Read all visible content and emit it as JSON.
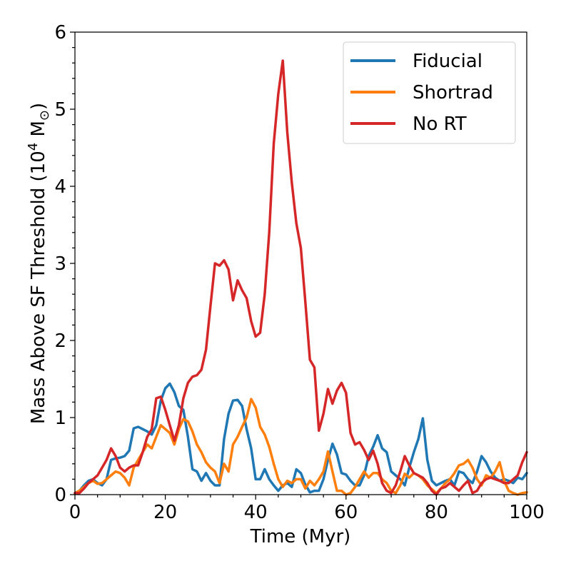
{
  "chart_data": {
    "type": "line",
    "title": "",
    "xlabel": "Time (Myr)",
    "ylabel_main": "Mass Above SF Threshold (10",
    "ylabel_exp": "4",
    "ylabel_unit": " M",
    "ylabel_sub": "⊙",
    "ylabel_close": ")",
    "xlim": [
      0,
      100
    ],
    "ylim": [
      0,
      6
    ],
    "xticks": [
      0,
      20,
      40,
      60,
      80,
      100
    ],
    "xtick_labels": [
      "0",
      "20",
      "40",
      "60",
      "80",
      "100"
    ],
    "yticks": [
      0,
      1,
      2,
      3,
      4,
      5,
      6
    ],
    "ytick_labels": [
      "0",
      "1",
      "2",
      "3",
      "4",
      "5",
      "6"
    ],
    "legend_position": "top-right",
    "series": [
      {
        "name": "Fiducial",
        "color": "#1f77b4",
        "x": [
          0,
          1,
          2,
          3,
          4,
          5,
          6,
          7,
          8,
          9,
          10,
          11,
          12,
          13,
          14,
          15,
          16,
          17,
          18,
          19,
          20,
          21,
          22,
          23,
          24,
          25,
          26,
          27,
          28,
          29,
          30,
          31,
          32,
          33,
          34,
          35,
          36,
          37,
          38,
          39,
          40,
          41,
          42,
          43,
          44,
          45,
          46,
          47,
          48,
          49,
          50,
          51,
          52,
          53,
          54,
          55,
          56,
          57,
          58,
          59,
          60,
          61,
          62,
          63,
          64,
          65,
          66,
          67,
          68,
          69,
          70,
          71,
          72,
          73,
          74,
          75,
          76,
          77,
          78,
          79,
          80,
          81,
          82,
          83,
          84,
          85,
          86,
          87,
          88,
          89,
          90,
          91,
          92,
          93,
          94,
          95,
          96,
          97,
          98,
          99,
          100
        ],
        "values": [
          0.02,
          0.05,
          0.12,
          0.18,
          0.2,
          0.15,
          0.12,
          0.2,
          0.45,
          0.47,
          0.48,
          0.5,
          0.57,
          0.86,
          0.88,
          0.85,
          0.82,
          0.78,
          0.9,
          1.22,
          1.38,
          1.44,
          1.33,
          1.15,
          1.1,
          0.75,
          0.33,
          0.3,
          0.18,
          0.28,
          0.18,
          0.12,
          0.12,
          0.72,
          1.05,
          1.22,
          1.23,
          1.15,
          0.85,
          0.6,
          0.2,
          0.2,
          0.33,
          0.2,
          0.12,
          0.05,
          0.12,
          0.15,
          0.1,
          0.33,
          0.28,
          0.13,
          0.03,
          0.05,
          0.05,
          0.2,
          0.45,
          0.66,
          0.52,
          0.28,
          0.26,
          0.18,
          0.12,
          0.12,
          0.25,
          0.5,
          0.62,
          0.77,
          0.6,
          0.55,
          0.3,
          0.25,
          0.2,
          0.12,
          0.35,
          0.55,
          0.72,
          0.99,
          0.45,
          0.18,
          0.12,
          0.15,
          0.18,
          0.2,
          0.12,
          0.3,
          0.28,
          0.2,
          0.15,
          0.3,
          0.5,
          0.42,
          0.3,
          0.22,
          0.18,
          0.2,
          0.18,
          0.15,
          0.22,
          0.2,
          0.28
        ]
      },
      {
        "name": "Shortrad",
        "color": "#ff7f0e",
        "x": [
          0,
          1,
          2,
          3,
          4,
          5,
          6,
          7,
          8,
          9,
          10,
          11,
          12,
          13,
          14,
          15,
          16,
          17,
          18,
          19,
          20,
          21,
          22,
          23,
          24,
          25,
          26,
          27,
          28,
          29,
          30,
          31,
          32,
          33,
          34,
          35,
          36,
          37,
          38,
          39,
          40,
          41,
          42,
          43,
          44,
          45,
          46,
          47,
          48,
          49,
          50,
          51,
          52,
          53,
          54,
          55,
          56,
          57,
          58,
          59,
          60,
          61,
          62,
          63,
          64,
          65,
          66,
          67,
          68,
          69,
          70,
          71,
          72,
          73,
          74,
          75,
          76,
          77,
          78,
          79,
          80,
          81,
          82,
          83,
          84,
          85,
          86,
          87,
          88,
          89,
          90,
          91,
          92,
          93,
          94,
          95,
          96,
          97,
          98,
          99,
          100
        ],
        "values": [
          0.02,
          0.05,
          0.1,
          0.15,
          0.18,
          0.14,
          0.15,
          0.2,
          0.25,
          0.3,
          0.28,
          0.22,
          0.12,
          0.35,
          0.45,
          0.55,
          0.65,
          0.6,
          0.75,
          0.9,
          0.85,
          0.8,
          0.65,
          0.85,
          0.98,
          0.95,
          0.82,
          0.65,
          0.55,
          0.42,
          0.35,
          0.3,
          0.15,
          0.4,
          0.3,
          0.65,
          0.75,
          0.88,
          1.0,
          1.24,
          1.13,
          0.88,
          0.78,
          0.62,
          0.4,
          0.2,
          0.1,
          0.18,
          0.15,
          0.2,
          0.2,
          0.08,
          0.18,
          0.12,
          0.2,
          0.3,
          0.56,
          0.3,
          0.05,
          0.05,
          0.0,
          0.02,
          0.1,
          0.2,
          0.3,
          0.22,
          0.28,
          0.28,
          0.2,
          0.15,
          0.05,
          0.02,
          0.12,
          0.27,
          0.22,
          0.28,
          0.25,
          0.2,
          0.12,
          0.07,
          0.02,
          0.08,
          0.15,
          0.2,
          0.28,
          0.38,
          0.4,
          0.45,
          0.35,
          0.2,
          0.12,
          0.25,
          0.22,
          0.3,
          0.42,
          0.18,
          0.05,
          0.02,
          0.0,
          0.02,
          0.03
        ]
      },
      {
        "name": "No RT",
        "color": "#d62728",
        "x": [
          0,
          1,
          2,
          3,
          4,
          5,
          6,
          7,
          8,
          9,
          10,
          11,
          12,
          13,
          14,
          15,
          16,
          17,
          18,
          19,
          20,
          21,
          22,
          23,
          24,
          25,
          26,
          27,
          28,
          29,
          30,
          31,
          32,
          33,
          34,
          35,
          36,
          37,
          38,
          39,
          40,
          41,
          42,
          43,
          44,
          45,
          46,
          47,
          48,
          49,
          50,
          51,
          52,
          53,
          54,
          55,
          56,
          57,
          58,
          59,
          60,
          61,
          62,
          63,
          64,
          65,
          66,
          67,
          68,
          69,
          70,
          71,
          72,
          73,
          74,
          75,
          76,
          77,
          78,
          79,
          80,
          81,
          82,
          83,
          84,
          85,
          86,
          87,
          88,
          89,
          90,
          91,
          92,
          93,
          94,
          95,
          96,
          97,
          98,
          99,
          100
        ],
        "values": [
          0.02,
          0.02,
          0.08,
          0.15,
          0.2,
          0.25,
          0.35,
          0.45,
          0.6,
          0.5,
          0.35,
          0.3,
          0.35,
          0.38,
          0.38,
          0.55,
          0.75,
          0.85,
          1.25,
          1.27,
          1.1,
          0.9,
          0.7,
          0.9,
          1.25,
          1.45,
          1.53,
          1.55,
          1.62,
          1.88,
          2.45,
          3.0,
          2.97,
          3.04,
          2.92,
          2.52,
          2.78,
          2.65,
          2.55,
          2.25,
          2.05,
          2.1,
          2.6,
          3.4,
          4.55,
          5.2,
          5.63,
          4.7,
          4.05,
          3.52,
          3.2,
          2.5,
          1.75,
          1.65,
          0.83,
          1.05,
          1.37,
          1.18,
          1.35,
          1.45,
          1.32,
          0.8,
          0.65,
          0.68,
          0.58,
          0.45,
          0.57,
          0.4,
          0.15,
          0.05,
          0.02,
          0.12,
          0.3,
          0.5,
          0.38,
          0.28,
          0.25,
          0.22,
          0.15,
          0.05,
          0.0,
          0.08,
          0.1,
          0.15,
          0.1,
          0.05,
          0.12,
          0.18,
          0.02,
          0.05,
          0.15,
          0.2,
          0.22,
          0.2,
          0.18,
          0.15,
          0.15,
          0.2,
          0.25,
          0.42,
          0.55
        ]
      }
    ]
  }
}
